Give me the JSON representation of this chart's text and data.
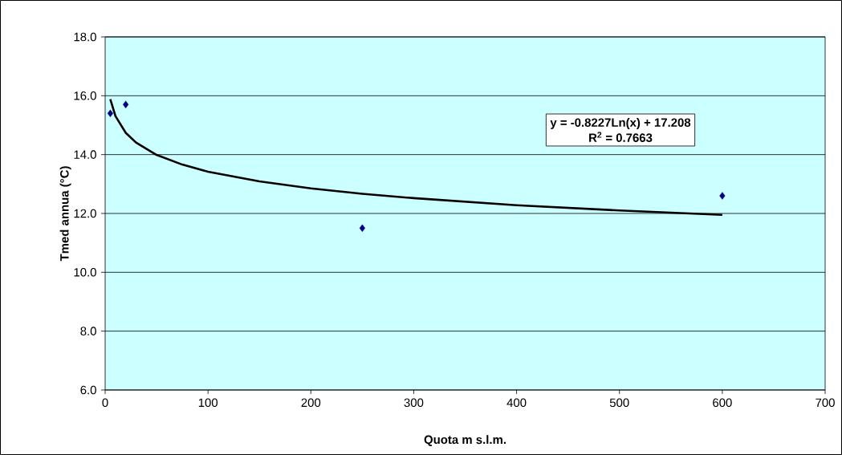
{
  "chart_data": {
    "type": "scatter",
    "xlabel": "Quota m s.l.m.",
    "ylabel": "Tmed annua (°C)",
    "annotations": [
      "y = -0.8227Ln(x) + 17.208",
      "R$^{2}$ = 0.7663"
    ],
    "xlim": [
      0,
      700
    ],
    "ylim": [
      6,
      18
    ],
    "xticks": [
      0,
      100,
      200,
      300,
      400,
      500,
      600,
      700
    ],
    "yticks": [
      {
        "value": 6,
        "label": "6.0"
      },
      {
        "value": 8,
        "label": "8.0"
      },
      {
        "value": 10,
        "label": "10.0"
      },
      {
        "value": 12,
        "label": "12.0"
      },
      {
        "value": 14,
        "label": "14.0"
      },
      {
        "value": 16,
        "label": "16.0"
      },
      {
        "value": 18,
        "label": "18.0"
      }
    ],
    "grid": "y",
    "series": [
      {
        "color": "#000080",
        "marker": "diamond",
        "x": [
          5,
          20,
          250,
          600
        ],
        "values": [
          15.4,
          15.7,
          11.5,
          12.6
        ]
      },
      {
        "type": "line",
        "color": "#000000",
        "marker": "none",
        "line_style": "solid",
        "x": [
          5,
          10,
          20,
          30,
          50,
          75,
          100,
          150,
          200,
          250,
          300,
          400,
          500,
          600
        ],
        "values": [
          15.88,
          15.31,
          14.74,
          14.41,
          13.99,
          13.66,
          13.42,
          13.09,
          12.85,
          12.67,
          12.52,
          12.28,
          12.1,
          11.95
        ]
      }
    ]
  }
}
